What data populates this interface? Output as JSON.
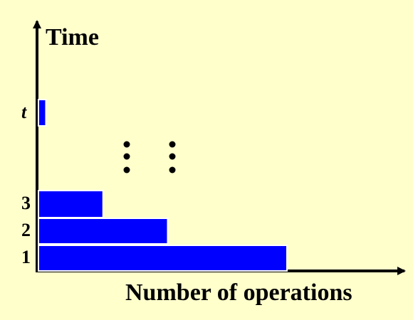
{
  "labels": {
    "y_axis": "Time",
    "x_axis": "Number of operations"
  },
  "rows": [
    {
      "label": "1",
      "value": 1.0
    },
    {
      "label": "2",
      "value": 0.52
    },
    {
      "label": "3",
      "value": 0.26
    },
    {
      "label": "t",
      "value": 0.03,
      "italic": true
    }
  ],
  "ellipsis_glyph": "⋮",
  "colors": {
    "background": "#ffffcc",
    "bar_fill": "#0000ff",
    "bar_edge": "#ffffff",
    "axis": "#000000"
  }
}
